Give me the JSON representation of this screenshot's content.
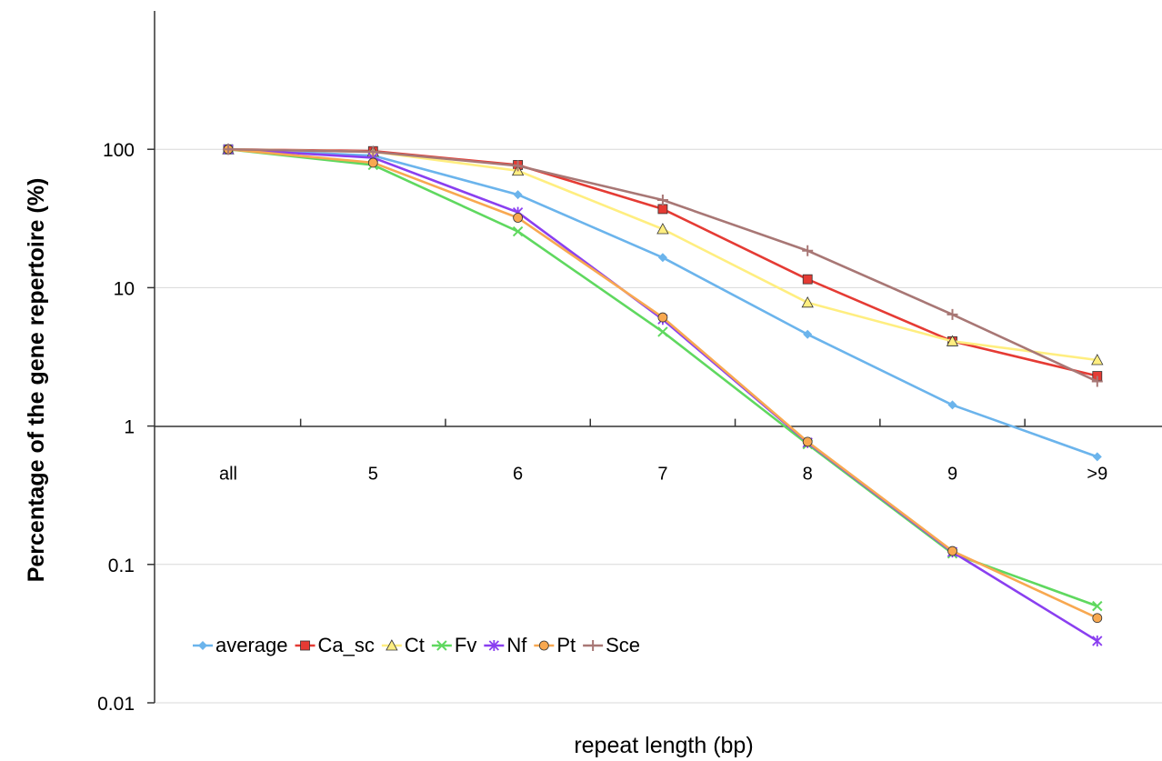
{
  "chart_data": {
    "type": "line",
    "scale": "log",
    "x_label": "repeat length (bp)",
    "y_label": "Percentage of the gene repertoire (%)",
    "categories": [
      "all",
      "5",
      "6",
      "7",
      "8",
      "9",
      ">9"
    ],
    "y_ticks": [
      "0.01",
      "0.1",
      "1",
      "10",
      "100"
    ],
    "y_tick_values": [
      0.01,
      0.1,
      1,
      10,
      100
    ],
    "ylim": [
      0.01,
      1000
    ],
    "grid": true,
    "legend_position": "lower-left",
    "series": [
      {
        "name": "average",
        "color": "#6BB4EC",
        "marker": "diamond",
        "values": [
          100,
          90,
          47,
          16.5,
          4.6,
          1.42,
          0.6
        ]
      },
      {
        "name": "Ca_sc",
        "color": "#E53B34",
        "marker": "square",
        "values": [
          100,
          97,
          77,
          37,
          11.5,
          4.1,
          2.3
        ]
      },
      {
        "name": "Ct",
        "color": "#FFEE80",
        "marker": "triangle",
        "values": [
          100,
          96,
          70,
          26.5,
          7.8,
          4.1,
          3.0
        ]
      },
      {
        "name": "Fv",
        "color": "#5FD85F",
        "marker": "x",
        "values": [
          100,
          77,
          25.5,
          4.8,
          0.74,
          0.12,
          0.05
        ]
      },
      {
        "name": "Nf",
        "color": "#8A3FF0",
        "marker": "star",
        "values": [
          100,
          87,
          35,
          5.9,
          0.76,
          0.123,
          0.028
        ]
      },
      {
        "name": "Pt",
        "color": "#F8A850",
        "marker": "circle",
        "values": [
          100,
          80,
          32,
          6.1,
          0.77,
          0.125,
          0.041
        ]
      },
      {
        "name": "Sce",
        "color": "#A87775",
        "marker": "plus",
        "values": [
          100,
          96,
          76,
          43,
          18.5,
          6.4,
          2.1
        ]
      }
    ]
  }
}
